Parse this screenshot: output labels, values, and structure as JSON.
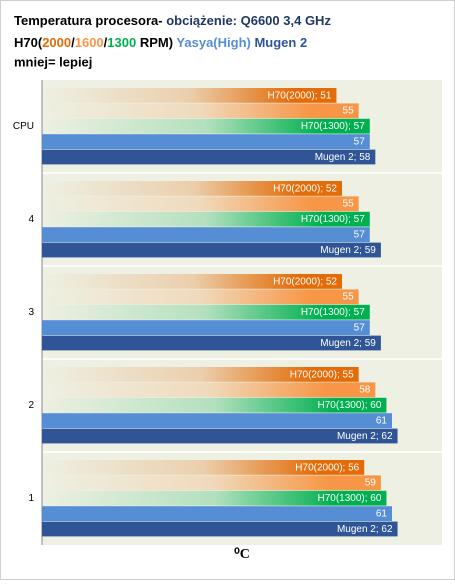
{
  "chart_data": {
    "type": "hbar",
    "title": [
      {
        "text": "Temperatura procesora- ",
        "color": "#000000"
      },
      {
        "text": "obciążenie: Q6600 3,4 GHz",
        "color": "#1f3864"
      }
    ],
    "subtitle": [
      {
        "text": "H70(",
        "color": "#000000"
      },
      {
        "text": "2000",
        "color": "#e36c09"
      },
      {
        "text": "/",
        "color": "#000000"
      },
      {
        "text": "1600",
        "color": "#f79646"
      },
      {
        "text": "/",
        "color": "#000000"
      },
      {
        "text": "1300",
        "color": "#00b050"
      },
      {
        "text": " RPM) ",
        "color": "#000000"
      },
      {
        "text": "Yasya(High) ",
        "color": "#558ed5"
      },
      {
        "text": "Mugen 2",
        "color": "#2f5597"
      }
    ],
    "note": "mniej= lepiej",
    "x_label": "⁰C",
    "categories": [
      "CPU",
      "4",
      "3",
      "2",
      "1"
    ],
    "xlim": [
      -2,
      70
    ],
    "series": [
      {
        "color": "#e36c09",
        "gradient": true,
        "values": [
          51,
          52,
          52,
          55,
          56
        ],
        "value_labels": [
          "H70(2000); 51",
          "H70(2000); 52",
          "H70(2000); 52",
          "H70(2000); 55",
          "H70(2000); 56"
        ]
      },
      {
        "color": "#f79646",
        "gradient": true,
        "values": [
          55,
          55,
          55,
          58,
          59
        ]
      },
      {
        "color": "#00b050",
        "gradient": true,
        "values": [
          57,
          57,
          57,
          60,
          60
        ],
        "value_labels": [
          "H70(1300); 57",
          "H70(1300); 57",
          "H70(1300); 57",
          "H70(1300); 60",
          "H70(1300); 60"
        ]
      },
      {
        "color": "#558ed5",
        "gradient": false,
        "values": [
          57,
          57,
          57,
          61,
          61
        ]
      },
      {
        "color": "#2f5597",
        "gradient": false,
        "values": [
          58,
          59,
          59,
          62,
          62
        ],
        "value_labels": [
          "Mugen 2; 58",
          "Mugen 2; 59",
          "Mugen 2; 59",
          "Mugen 2; 62",
          "Mugen 2; 62"
        ]
      }
    ]
  }
}
